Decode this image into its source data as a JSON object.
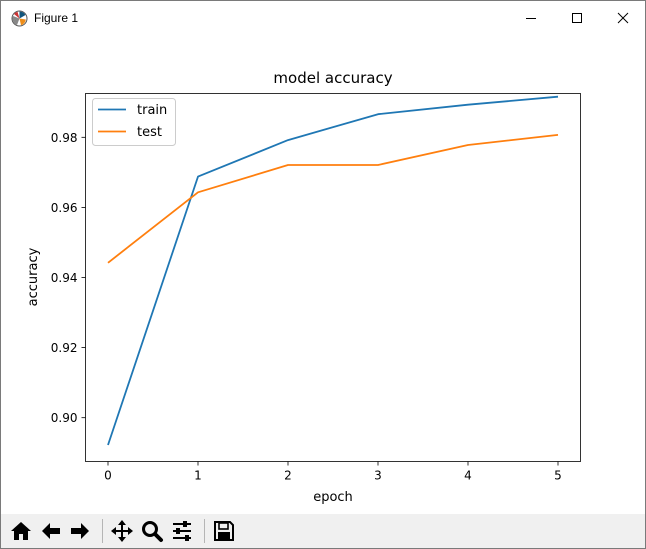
{
  "window": {
    "title": "Figure 1",
    "app_icon": "matplotlib-icon",
    "controls": {
      "minimize": "minimize-icon",
      "maximize": "maximize-icon",
      "close": "close-icon"
    }
  },
  "toolbar": {
    "buttons": [
      {
        "name": "home-icon"
      },
      {
        "name": "back-arrow-icon"
      },
      {
        "name": "forward-arrow-icon"
      },
      {
        "name": "pan-icon"
      },
      {
        "name": "zoom-icon"
      },
      {
        "name": "configure-subplots-icon"
      },
      {
        "name": "save-icon"
      }
    ]
  },
  "chart_data": {
    "type": "line",
    "title": "model accuracy",
    "xlabel": "epoch",
    "ylabel": "accuracy",
    "x": [
      0,
      1,
      2,
      3,
      4,
      5
    ],
    "xticks": [
      "0",
      "1",
      "2",
      "3",
      "4",
      "5"
    ],
    "yticks": [
      "0.90",
      "0.92",
      "0.94",
      "0.96",
      "0.98"
    ],
    "ytick_values": [
      0.9,
      0.92,
      0.94,
      0.96,
      0.98
    ],
    "xlim": [
      -0.25,
      5.25
    ],
    "ylim": [
      0.8875,
      0.9925
    ],
    "legend_position": "upper left",
    "grid": false,
    "series": [
      {
        "name": "train",
        "color": "#1f77b4",
        "values": [
          0.8922,
          0.9688,
          0.9792,
          0.9866,
          0.9893,
          0.9916
        ]
      },
      {
        "name": "test",
        "color": "#ff7f0e",
        "values": [
          0.9442,
          0.9643,
          0.9721,
          0.9721,
          0.9778,
          0.9807
        ]
      }
    ]
  }
}
